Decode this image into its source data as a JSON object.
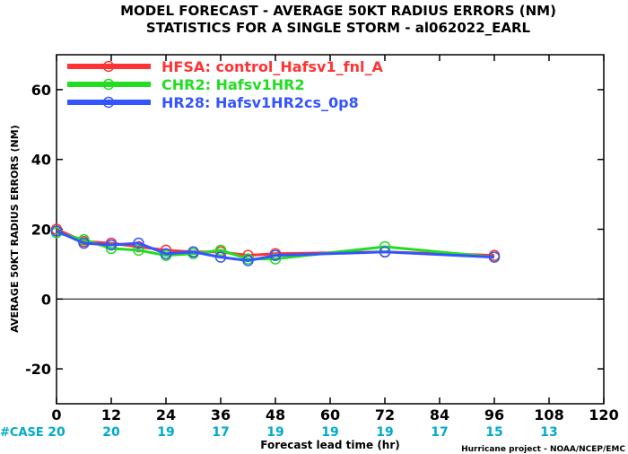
{
  "chart_data": {
    "type": "line",
    "title_line1": "MODEL FORECAST - AVERAGE 50KT RADIUS ERRORS (NM)",
    "title_line2": "STATISTICS FOR A SINGLE STORM - al062022_EARL",
    "ylabel": "AVERAGE 50KT RADIUS ERRORS (NM)",
    "xlabel": "Forecast lead time (hr)",
    "credit": "Hurricane project - NOAA/NCEP/EMC",
    "xlim": [
      0,
      120
    ],
    "ylim": [
      -30,
      70
    ],
    "x_ticks": [
      0,
      12,
      24,
      36,
      48,
      60,
      72,
      84,
      96,
      108,
      120
    ],
    "y_ticks": [
      -20,
      0,
      20,
      40,
      60
    ],
    "grid": false,
    "legend_position": "top-left",
    "series": [
      {
        "name": "HFSA: control_Hafsv1_fnl_A",
        "color": "#ff3333",
        "x": [
          0,
          6,
          12,
          18,
          24,
          30,
          36,
          42,
          48,
          72,
          96
        ],
        "y": [
          20,
          16.5,
          16,
          15,
          14,
          13.5,
          13.5,
          12.5,
          13,
          13.5,
          12.5
        ]
      },
      {
        "name": "CHR2: Hafsv1HR2",
        "color": "#22dd22",
        "x": [
          0,
          6,
          12,
          18,
          24,
          30,
          36,
          42,
          48,
          72,
          96
        ],
        "y": [
          19,
          17,
          14.5,
          14,
          12.5,
          13,
          14,
          11.5,
          11.5,
          15,
          12
        ]
      },
      {
        "name": "HR28: Hafsv1HR2cs_0p8",
        "color": "#3355ff",
        "x": [
          0,
          6,
          12,
          18,
          24,
          30,
          36,
          42,
          48,
          72,
          96
        ],
        "y": [
          19.5,
          16,
          15.5,
          16,
          13,
          13.5,
          12,
          11,
          12.5,
          13.5,
          12
        ]
      }
    ],
    "case_label": "#CASE",
    "case_label_color": "#00aacc",
    "cases": [
      {
        "x": 0,
        "n": "20"
      },
      {
        "x": 12,
        "n": "20"
      },
      {
        "x": 24,
        "n": "19"
      },
      {
        "x": 36,
        "n": "17"
      },
      {
        "x": 48,
        "n": "19"
      },
      {
        "x": 60,
        "n": "19"
      },
      {
        "x": 72,
        "n": "19"
      },
      {
        "x": 84,
        "n": "17"
      },
      {
        "x": 96,
        "n": "15"
      },
      {
        "x": 108,
        "n": "13"
      }
    ]
  }
}
